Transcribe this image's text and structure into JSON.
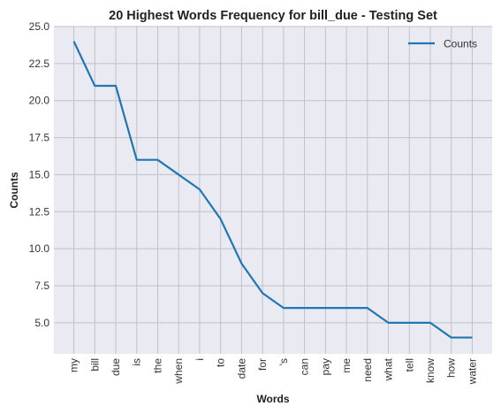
{
  "chart_data": {
    "type": "line",
    "title": "20 Highest Words Frequency for bill_due - Testing Set",
    "xlabel": "Words",
    "ylabel": "Counts",
    "categories": [
      "my",
      "bill",
      "due",
      "is",
      "the",
      "when",
      "i",
      "to",
      "date",
      "for",
      "'s",
      "can",
      "pay",
      "me",
      "need",
      "what",
      "tell",
      "know",
      "how",
      "water"
    ],
    "series": [
      {
        "name": "Counts",
        "values": [
          24,
          21,
          21,
          16,
          16,
          15,
          14,
          12,
          9,
          7,
          6,
          6,
          6,
          6,
          6,
          5,
          5,
          5,
          4,
          4
        ]
      }
    ],
    "ylim": [
      2.9,
      25.0
    ],
    "yticks": [
      "5.0",
      "7.5",
      "10.0",
      "12.5",
      "15.0",
      "17.5",
      "20.0",
      "22.5",
      "25.0"
    ],
    "grid": true,
    "legend_position": "top-right",
    "colors": {
      "line": "#1f77b4",
      "background": "#eaeaf2",
      "grid": "#c0c0c8"
    }
  }
}
